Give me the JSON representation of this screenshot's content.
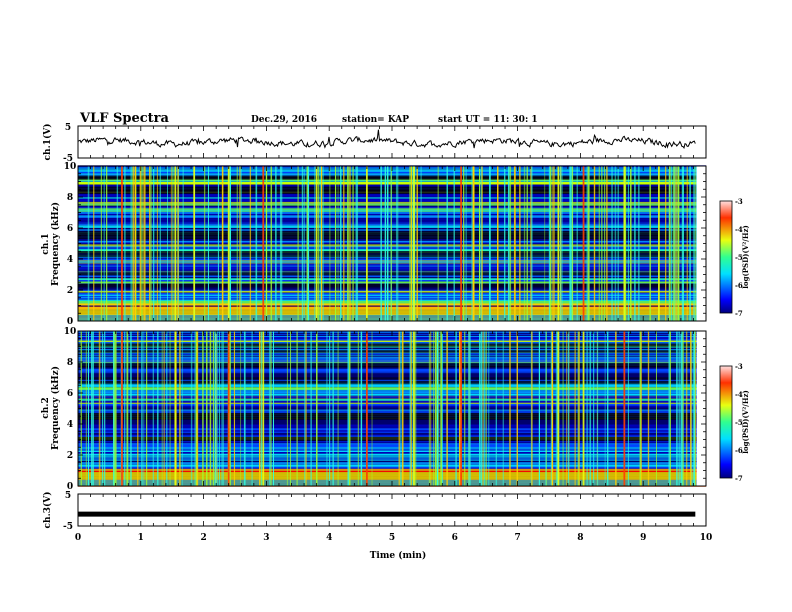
{
  "header": {
    "title": "VLF Spectra",
    "date": "Dec.29, 2016",
    "station": "station= KAP",
    "start": "start  UT  =    11: 30: 1"
  },
  "chart_data": [
    {
      "type": "line",
      "name": "ch1-waveform",
      "ylabel": "ch.1(V)",
      "ylim": [
        -5,
        5
      ],
      "yticks": [
        "5",
        "-5"
      ],
      "x_range": [
        0,
        9.83
      ],
      "description_values": "noisy waveform centered near 0 V with amplitude about ±2 V"
    },
    {
      "type": "heatmap",
      "name": "ch1-spectrogram",
      "ylabel_line1": "ch.1",
      "ylabel_line2": "Frequency (kHz)",
      "ylim": [
        0,
        10
      ],
      "yticks": [
        "0",
        "2",
        "4",
        "6",
        "8",
        "10"
      ],
      "xlim": [
        0,
        10
      ],
      "colorbar": {
        "label": "log(PSD)(V²/Hz)",
        "range": [
          -7,
          -3
        ],
        "ticks": [
          "-3",
          "-4",
          "-5",
          "-6",
          "-7"
        ]
      },
      "strong_lines_min": [
        0.7,
        1.55,
        1.85,
        2.4,
        2.95,
        3.8,
        4.6,
        5.35,
        6.1,
        7.65,
        8.05,
        8.7,
        9.25
      ]
    },
    {
      "type": "heatmap",
      "name": "ch2-spectrogram",
      "ylabel_line1": "ch.2",
      "ylabel_line2": "Frequency (kHz)",
      "ylim": [
        0,
        10
      ],
      "yticks": [
        "0",
        "2",
        "4",
        "6",
        "8",
        "10"
      ],
      "xlim": [
        0,
        10
      ],
      "colorbar": {
        "label": "log(PSD)(V²/Hz)",
        "range": [
          -7,
          -3
        ],
        "ticks": [
          "-3",
          "-4",
          "-5",
          "-6",
          "-7"
        ]
      },
      "strong_lines_min": [
        0.7,
        1.55,
        2.4,
        2.95,
        4.6,
        5.35,
        6.1,
        7.65,
        8.05,
        8.7
      ]
    },
    {
      "type": "line",
      "name": "ch3-waveform",
      "ylabel": "ch.3(V)",
      "ylim": [
        -5,
        5
      ],
      "yticks": [
        "5",
        "-5"
      ],
      "x_range": [
        0,
        9.83
      ],
      "values_constant": -1.3
    }
  ],
  "xaxis": {
    "label": "Time  (min)",
    "ticks": [
      "0",
      "1",
      "2",
      "3",
      "4",
      "5",
      "6",
      "7",
      "8",
      "9",
      "10"
    ]
  }
}
